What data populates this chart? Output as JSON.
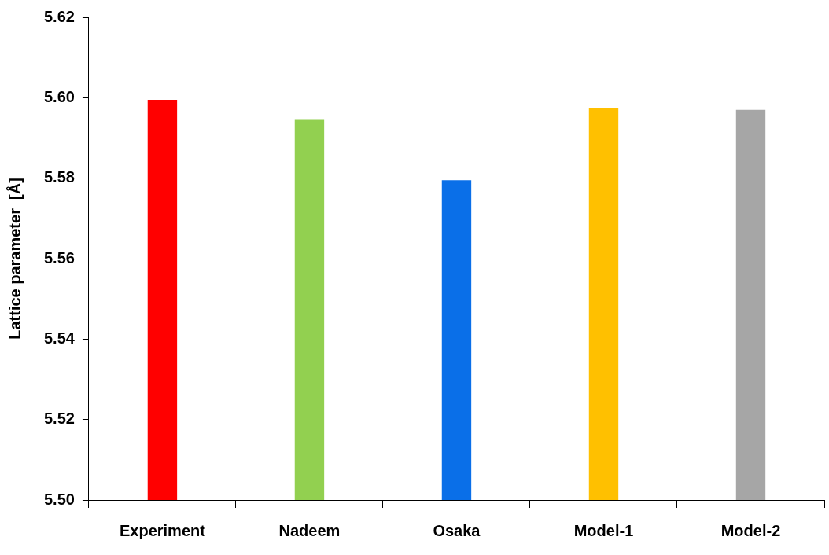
{
  "chart_data": {
    "type": "bar",
    "ylabel": "Lattice parameter  [Å]",
    "categories": [
      "Experiment",
      "Nadeem",
      "Osaka",
      "Model-1",
      "Model-2"
    ],
    "values": [
      5.5995,
      5.5945,
      5.5795,
      5.5975,
      5.597
    ],
    "colors": [
      "#ff0000",
      "#92d050",
      "#0a6fe8",
      "#ffc000",
      "#a6a6a6"
    ],
    "ylim": [
      5.5,
      5.62
    ],
    "yticks": [
      {
        "value": 5.5,
        "label": "5.50"
      },
      5.52,
      5.54,
      5.56,
      5.58,
      {
        "value": 5.6,
        "label": "5.60"
      },
      5.62
    ]
  }
}
